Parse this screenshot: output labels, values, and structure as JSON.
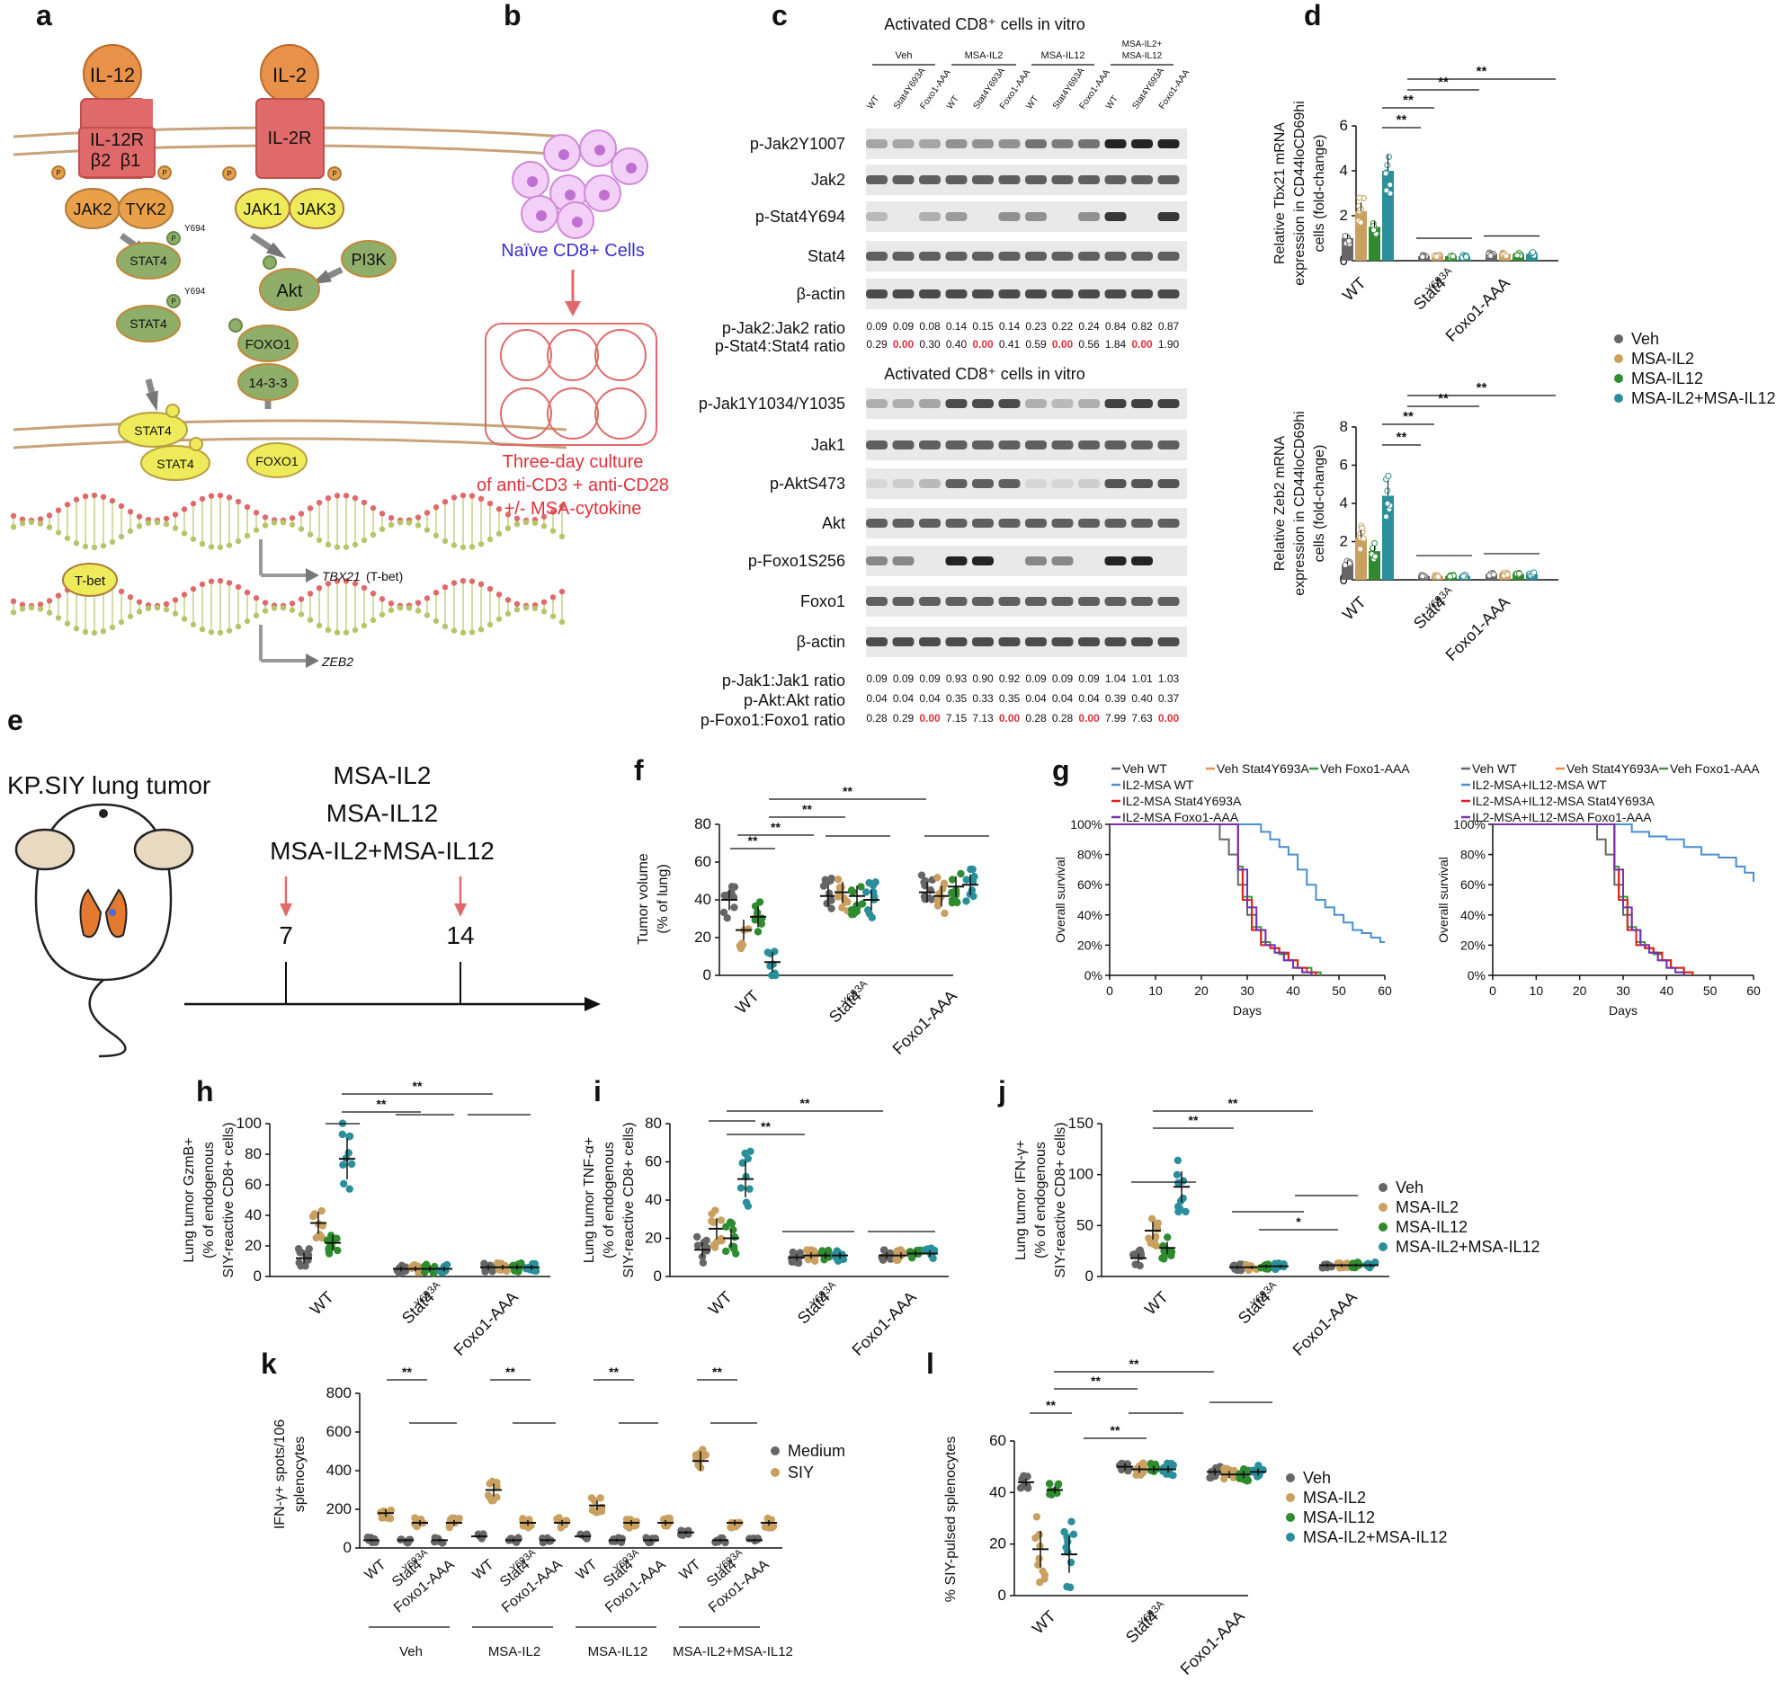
{
  "panel_letters": [
    "a",
    "b",
    "c",
    "d",
    "e",
    "f",
    "g",
    "h",
    "i",
    "j",
    "k",
    "l"
  ],
  "colors": {
    "veh": "#666666",
    "il2": "#c9a05f",
    "il12": "#2e8b2e",
    "combo": "#2a8f9a",
    "receptor": "#e06a6a",
    "ligand": "#e8914a",
    "kinase": "#e8a04a",
    "stat": "#8fae6a",
    "yellow": "#eeeb5a",
    "membrane": "#c8a27a",
    "red_text": "#e0303a",
    "naive_text": "#3a2fd0"
  },
  "panel_a": {
    "ligands": [
      "IL-12",
      "IL-2"
    ],
    "receptors": [
      "IL-12R",
      "IL-2R"
    ],
    "il12r_subunits": [
      "β2",
      "β1"
    ],
    "kinases": [
      "JAK2",
      "TYK2",
      "JAK1",
      "JAK3"
    ],
    "p": "P",
    "y694": "Y694",
    "stat4": "STAT4",
    "akt": "Akt",
    "pi3k": "PI3K",
    "foxo1": "FOXO1",
    "p1433": "14-3-3",
    "tbet": "T-bet",
    "tbx21": "TBX21",
    "tbx21_suffix": "(T-bet)",
    "zeb2": "ZEB2"
  },
  "panel_b": {
    "cells_label": "Naïve CD8+ Cells",
    "culture_lines": [
      "Three-day culture",
      "of anti-CD3 + anti-CD28",
      "+/- MSA-cytokine"
    ]
  },
  "panel_c": {
    "title1": "Activated CD8⁺ cells in vitro",
    "title2": "Activated CD8⁺ cells in vitro",
    "groups": [
      "Veh",
      "MSA-IL2",
      "MSA-IL12",
      "MSA-IL2+ MSA-IL12"
    ],
    "lanes": [
      "WT",
      "Stat4Y693A",
      "Foxo1-AAA",
      "WT",
      "Stat4Y693A",
      "Foxo1-AAA",
      "WT",
      "Stat4Y693A",
      "Foxo1-AAA",
      "WT",
      "Stat4Y693A",
      "Foxo1-AAA"
    ],
    "blots1": [
      "p-Jak2Y1007",
      "Jak2",
      "p-Stat4Y694",
      "Stat4",
      "β-actin"
    ],
    "blots2": [
      "p-Jak1Y1034/Y1035",
      "Jak1",
      "p-AktS473",
      "Akt",
      "p-Foxo1S256",
      "Foxo1",
      "β-actin"
    ],
    "ratios1": [
      {
        "label": "p-Jak2:Jak2 ratio",
        "values": [
          "0.09",
          "0.09",
          "0.08",
          "0.14",
          "0.15",
          "0.14",
          "0.23",
          "0.22",
          "0.24",
          "0.84",
          "0.82",
          "0.87"
        ]
      },
      {
        "label": "p-Stat4:Stat4 ratio",
        "values": [
          "0.29",
          "0.00",
          "0.30",
          "0.40",
          "0.00",
          "0.41",
          "0.59",
          "0.00",
          "0.56",
          "1.84",
          "0.00",
          "1.90"
        ]
      }
    ],
    "ratios2": [
      {
        "label": "p-Jak1:Jak1 ratio",
        "values": [
          "0.09",
          "0.09",
          "0.09",
          "0.93",
          "0.90",
          "0.92",
          "0.09",
          "0.09",
          "0.09",
          "1.04",
          "1.01",
          "1.03"
        ]
      },
      {
        "label": "p-Akt:Akt ratio",
        "values": [
          "0.04",
          "0.04",
          "0.04",
          "0.35",
          "0.33",
          "0.35",
          "0.04",
          "0.04",
          "0.04",
          "0.39",
          "0.40",
          "0.37"
        ]
      },
      {
        "label": "p-Foxo1:Foxo1 ratio",
        "values": [
          "0.28",
          "0.29",
          "0.00",
          "7.15",
          "7.13",
          "0.00",
          "0.28",
          "0.28",
          "0.00",
          "7.99",
          "7.63",
          "0.00"
        ]
      }
    ]
  },
  "panel_e": {
    "model": "KP.SIY lung tumor",
    "treatments": [
      "MSA-IL2",
      "MSA-IL12",
      "MSA-IL2+MSA-IL12"
    ],
    "days": [
      "7",
      "14"
    ]
  },
  "panel_g": {
    "left_legend": [
      "Veh WT",
      "Veh Stat4Y693A",
      "Veh Foxo1-AAA",
      "IL2-MSA WT",
      "IL2-MSA Stat4Y693A",
      "IL2-MSA Foxo1-AAA"
    ],
    "right_legend": [
      "Veh WT",
      "Veh Stat4Y693A",
      "Veh Foxo1-AAA",
      "IL2-MSA+IL12-MSA WT",
      "IL2-MSA+IL12-MSA Stat4Y693A",
      "IL2-MSA+IL12-MSA Foxo1-AAA"
    ]
  },
  "legends": {
    "treatments": [
      "Veh",
      "MSA-IL2",
      "MSA-IL12",
      "MSA-IL2+MSA-IL12"
    ],
    "k": [
      "Medium",
      "SIY"
    ]
  },
  "stars": {
    "double": "**",
    "single": "*"
  },
  "chart_data": [
    {
      "id": "d_top",
      "type": "bar",
      "ylabel": "Relative Tbx21 mRNA expression in CD44loCD69hi cells (fold-change)",
      "ylim": [
        0,
        6
      ],
      "yticks": [
        0,
        2,
        4,
        6
      ],
      "categories": [
        "WT",
        "Stat4Y693A",
        "Foxo1-AAA"
      ],
      "series": [
        {
          "name": "Veh",
          "values": [
            1.0,
            0.2,
            0.3
          ]
        },
        {
          "name": "MSA-IL2",
          "values": [
            2.2,
            0.2,
            0.3
          ]
        },
        {
          "name": "MSA-IL12",
          "values": [
            1.5,
            0.2,
            0.3
          ]
        },
        {
          "name": "MSA-IL2+MSA-IL12",
          "values": [
            4.0,
            0.2,
            0.3
          ]
        }
      ]
    },
    {
      "id": "d_bottom",
      "type": "bar",
      "ylabel": "Relative Zeb2 mRNA expression in CD44loCD69hi cells (fold-change)",
      "ylim": [
        0,
        8
      ],
      "yticks": [
        0,
        2,
        4,
        6,
        8
      ],
      "categories": [
        "WT",
        "Stat4Y693A",
        "Foxo1-AAA"
      ],
      "series": [
        {
          "name": "Veh",
          "values": [
            0.8,
            0.2,
            0.3
          ]
        },
        {
          "name": "MSA-IL2",
          "values": [
            2.2,
            0.2,
            0.3
          ]
        },
        {
          "name": "MSA-IL12",
          "values": [
            1.5,
            0.2,
            0.3
          ]
        },
        {
          "name": "MSA-IL2+MSA-IL12",
          "values": [
            4.4,
            0.2,
            0.3
          ]
        }
      ]
    },
    {
      "id": "f",
      "type": "scatter",
      "ylabel": "Tumor volume (% of lung)",
      "ylim": [
        0,
        80
      ],
      "yticks": [
        0,
        20,
        40,
        60,
        80
      ],
      "categories": [
        "WT",
        "Stat4Y693A",
        "Foxo1-AAA"
      ],
      "series": [
        {
          "name": "Veh",
          "values": [
            40,
            42,
            44
          ]
        },
        {
          "name": "MSA-IL2",
          "values": [
            24,
            44,
            42
          ]
        },
        {
          "name": "MSA-IL12",
          "values": [
            31,
            42,
            47
          ]
        },
        {
          "name": "MSA-IL2+MSA-IL12",
          "values": [
            7,
            40,
            48
          ]
        }
      ]
    },
    {
      "id": "g_left",
      "type": "line",
      "xlabel": "Days",
      "ylabel": "Overall survival",
      "xlim": [
        0,
        60
      ],
      "ylim": [
        0,
        100
      ],
      "xticks": [
        0,
        10,
        20,
        30,
        40,
        50,
        60
      ],
      "yticks": [
        "0%",
        "20%",
        "40%",
        "60%",
        "80%",
        "100%"
      ],
      "series": [
        {
          "name": "Veh WT",
          "x": [
            0,
            22,
            24,
            26,
            28,
            30,
            32,
            34,
            36,
            38,
            40,
            42,
            44
          ],
          "y": [
            100,
            100,
            90,
            80,
            60,
            40,
            30,
            20,
            15,
            10,
            5,
            2,
            0
          ]
        },
        {
          "name": "Veh Stat4Y693A",
          "x": [
            0,
            27,
            28,
            29,
            31,
            33,
            35,
            37,
            39,
            41,
            44,
            46
          ],
          "y": [
            100,
            100,
            70,
            50,
            30,
            20,
            18,
            15,
            10,
            5,
            2,
            0
          ]
        },
        {
          "name": "Veh Foxo1-AAA",
          "x": [
            0,
            27,
            28,
            29,
            31,
            33,
            35,
            37,
            39,
            41,
            44,
            46
          ],
          "y": [
            100,
            100,
            72,
            52,
            32,
            22,
            18,
            14,
            10,
            5,
            2,
            0
          ]
        },
        {
          "name": "IL2-MSA WT",
          "x": [
            0,
            32,
            33,
            35,
            37,
            39,
            41,
            43,
            45,
            47,
            49,
            51,
            53,
            55,
            57,
            59,
            60
          ],
          "y": [
            100,
            100,
            95,
            90,
            85,
            80,
            70,
            60,
            50,
            45,
            40,
            35,
            30,
            28,
            25,
            22,
            22
          ]
        },
        {
          "name": "IL2-MSA Stat4Y693A",
          "x": [
            0,
            27,
            28,
            29,
            31,
            33,
            35,
            37,
            39,
            41,
            43,
            45
          ],
          "y": [
            100,
            100,
            70,
            50,
            30,
            20,
            18,
            15,
            10,
            5,
            2,
            0
          ]
        },
        {
          "name": "IL2-MSA Foxo1-AAA",
          "x": [
            0,
            26,
            28,
            30,
            32,
            34,
            36,
            38,
            40,
            42,
            44
          ],
          "y": [
            100,
            100,
            70,
            45,
            30,
            20,
            15,
            10,
            5,
            2,
            0
          ]
        }
      ]
    },
    {
      "id": "g_right",
      "type": "line",
      "xlabel": "Days",
      "ylabel": "Overall survival",
      "xlim": [
        0,
        60
      ],
      "ylim": [
        0,
        100
      ],
      "xticks": [
        0,
        10,
        20,
        30,
        40,
        50,
        60
      ],
      "yticks": [
        "0%",
        "20%",
        "40%",
        "60%",
        "80%",
        "100%"
      ],
      "series": [
        {
          "name": "Veh WT",
          "x": [
            0,
            22,
            24,
            26,
            28,
            30,
            32,
            34,
            36,
            38,
            40,
            42,
            44
          ],
          "y": [
            100,
            100,
            90,
            80,
            60,
            40,
            30,
            20,
            15,
            10,
            5,
            2,
            0
          ]
        },
        {
          "name": "Veh Stat4Y693A",
          "x": [
            0,
            27,
            28,
            29,
            31,
            33,
            35,
            37,
            39,
            41,
            44,
            46
          ],
          "y": [
            100,
            100,
            70,
            50,
            30,
            20,
            18,
            15,
            10,
            5,
            2,
            0
          ]
        },
        {
          "name": "Veh Foxo1-AAA",
          "x": [
            0,
            27,
            28,
            29,
            31,
            33,
            35,
            37,
            39,
            41,
            44,
            46
          ],
          "y": [
            100,
            100,
            72,
            52,
            32,
            22,
            18,
            14,
            10,
            5,
            2,
            0
          ]
        },
        {
          "name": "IL2-MSA+IL12-MSA WT",
          "x": [
            0,
            30,
            32,
            36,
            40,
            44,
            48,
            52,
            56,
            58,
            60
          ],
          "y": [
            100,
            100,
            95,
            92,
            90,
            85,
            80,
            78,
            72,
            68,
            62
          ]
        },
        {
          "name": "IL2-MSA+IL12-MSA Stat4Y693A",
          "x": [
            0,
            27,
            28,
            29,
            31,
            33,
            35,
            37,
            39,
            41,
            44,
            46
          ],
          "y": [
            100,
            100,
            70,
            50,
            30,
            20,
            18,
            15,
            10,
            5,
            2,
            0
          ]
        },
        {
          "name": "IL2-MSA+IL12-MSA Foxo1-AAA",
          "x": [
            0,
            26,
            28,
            30,
            32,
            34,
            36,
            38,
            40,
            42,
            44
          ],
          "y": [
            100,
            100,
            70,
            45,
            30,
            20,
            15,
            10,
            5,
            2,
            0
          ]
        }
      ]
    },
    {
      "id": "h",
      "type": "scatter",
      "ylabel": "Lung tumor GzmB+ (% of endogenous SIY-reactive CD8+ cells)",
      "ylim": [
        0,
        100
      ],
      "yticks": [
        0,
        20,
        40,
        60,
        80,
        100
      ],
      "categories": [
        "WT",
        "Stat4Y693A",
        "Foxo1-AAA"
      ],
      "series": [
        {
          "name": "Veh",
          "values": [
            12,
            5,
            6
          ]
        },
        {
          "name": "MSA-IL2",
          "values": [
            35,
            5,
            6
          ]
        },
        {
          "name": "MSA-IL12",
          "values": [
            22,
            5,
            6
          ]
        },
        {
          "name": "MSA-IL2+MSA-IL12",
          "values": [
            77,
            5,
            6
          ]
        }
      ]
    },
    {
      "id": "i",
      "type": "scatter",
      "ylabel": "Lung tumor TNF-α+ (% of endogenous SIY-reactive CD8+ cells)",
      "ylim": [
        0,
        80
      ],
      "yticks": [
        0,
        20,
        40,
        60,
        80
      ],
      "categories": [
        "WT",
        "Stat4Y693A",
        "Foxo1-AAA"
      ],
      "series": [
        {
          "name": "Veh",
          "values": [
            14,
            10,
            11
          ]
        },
        {
          "name": "MSA-IL2",
          "values": [
            25,
            11,
            11
          ]
        },
        {
          "name": "MSA-IL12",
          "values": [
            20,
            11,
            12
          ]
        },
        {
          "name": "MSA-IL2+MSA-IL12",
          "values": [
            51,
            11,
            12
          ]
        }
      ]
    },
    {
      "id": "j",
      "type": "scatter",
      "ylabel": "Lung tumor IFN-γ+ (% of endogenous SIY-reactive CD8+ cells)",
      "ylim": [
        0,
        150
      ],
      "yticks": [
        0,
        50,
        100,
        150
      ],
      "categories": [
        "WT",
        "Stat4Y693A",
        "Foxo1-AAA"
      ],
      "series": [
        {
          "name": "Veh",
          "values": [
            18,
            9,
            11
          ]
        },
        {
          "name": "MSA-IL2",
          "values": [
            45,
            9,
            11
          ]
        },
        {
          "name": "MSA-IL12",
          "values": [
            28,
            10,
            11
          ]
        },
        {
          "name": "MSA-IL2+MSA-IL12",
          "values": [
            88,
            10,
            11
          ]
        }
      ]
    },
    {
      "id": "k",
      "type": "scatter",
      "ylabel": "IFN-γ+ spots/10^6 splenocytes",
      "ylim": [
        0,
        800
      ],
      "yticks": [
        0,
        200,
        400,
        600,
        800
      ],
      "groups": [
        "Veh",
        "MSA-IL2",
        "MSA-IL12",
        "MSA-IL2+MSA-IL12"
      ],
      "categories": [
        "WT",
        "Stat4Y693A",
        "Foxo1-AAA"
      ],
      "series": [
        {
          "name": "Medium",
          "values": [
            40,
            40,
            40,
            60,
            40,
            40,
            60,
            40,
            40,
            80,
            40,
            40
          ]
        },
        {
          "name": "SIY",
          "values": [
            180,
            130,
            130,
            300,
            130,
            130,
            220,
            130,
            130,
            450,
            130,
            130
          ]
        }
      ]
    },
    {
      "id": "l",
      "type": "scatter",
      "ylabel": "% SIY-pulsed splenocytes",
      "ylim": [
        0,
        60
      ],
      "yticks": [
        0,
        20,
        40,
        60
      ],
      "categories": [
        "WT",
        "Stat4Y693A",
        "Foxo1-AAA"
      ],
      "series": [
        {
          "name": "Veh",
          "values": [
            44,
            50,
            48
          ]
        },
        {
          "name": "MSA-IL2",
          "values": [
            18,
            49,
            47
          ]
        },
        {
          "name": "MSA-IL12",
          "values": [
            41,
            49,
            47
          ]
        },
        {
          "name": "MSA-IL2+MSA-IL12",
          "values": [
            16,
            49,
            48
          ]
        }
      ]
    }
  ]
}
